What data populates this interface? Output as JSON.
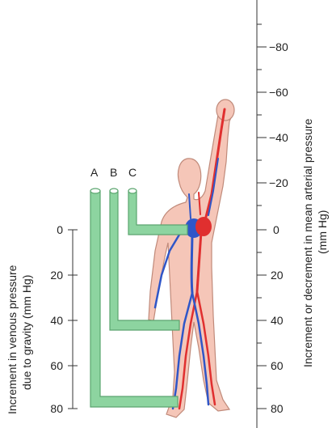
{
  "tubes": [
    {
      "label": "A",
      "connects_to": "feet"
    },
    {
      "label": "B",
      "connects_to": "thigh"
    },
    {
      "label": "C",
      "connects_to": "heart"
    }
  ],
  "left_axis": {
    "title_line1": "Increment in venous pressure",
    "title_line2": "due to gravity (mm Hg)",
    "ticks": [
      "0",
      "20",
      "40",
      "60",
      "80"
    ]
  },
  "right_axis": {
    "title_line1": "Increment or decrement in mean arterial pressure",
    "title_line2": "(mm Hg)",
    "ticks": [
      "−80",
      "−60",
      "−40",
      "−20",
      "0",
      "20",
      "40",
      "60",
      "80"
    ]
  },
  "colors": {
    "body_fill": "#f5c6b8",
    "body_stroke": "#c08a7a",
    "artery": "#e02f2f",
    "vein": "#2f56c8",
    "tube_fill": "#8dd4a0",
    "tube_stroke": "#5ba56f",
    "axis": "#333333"
  }
}
